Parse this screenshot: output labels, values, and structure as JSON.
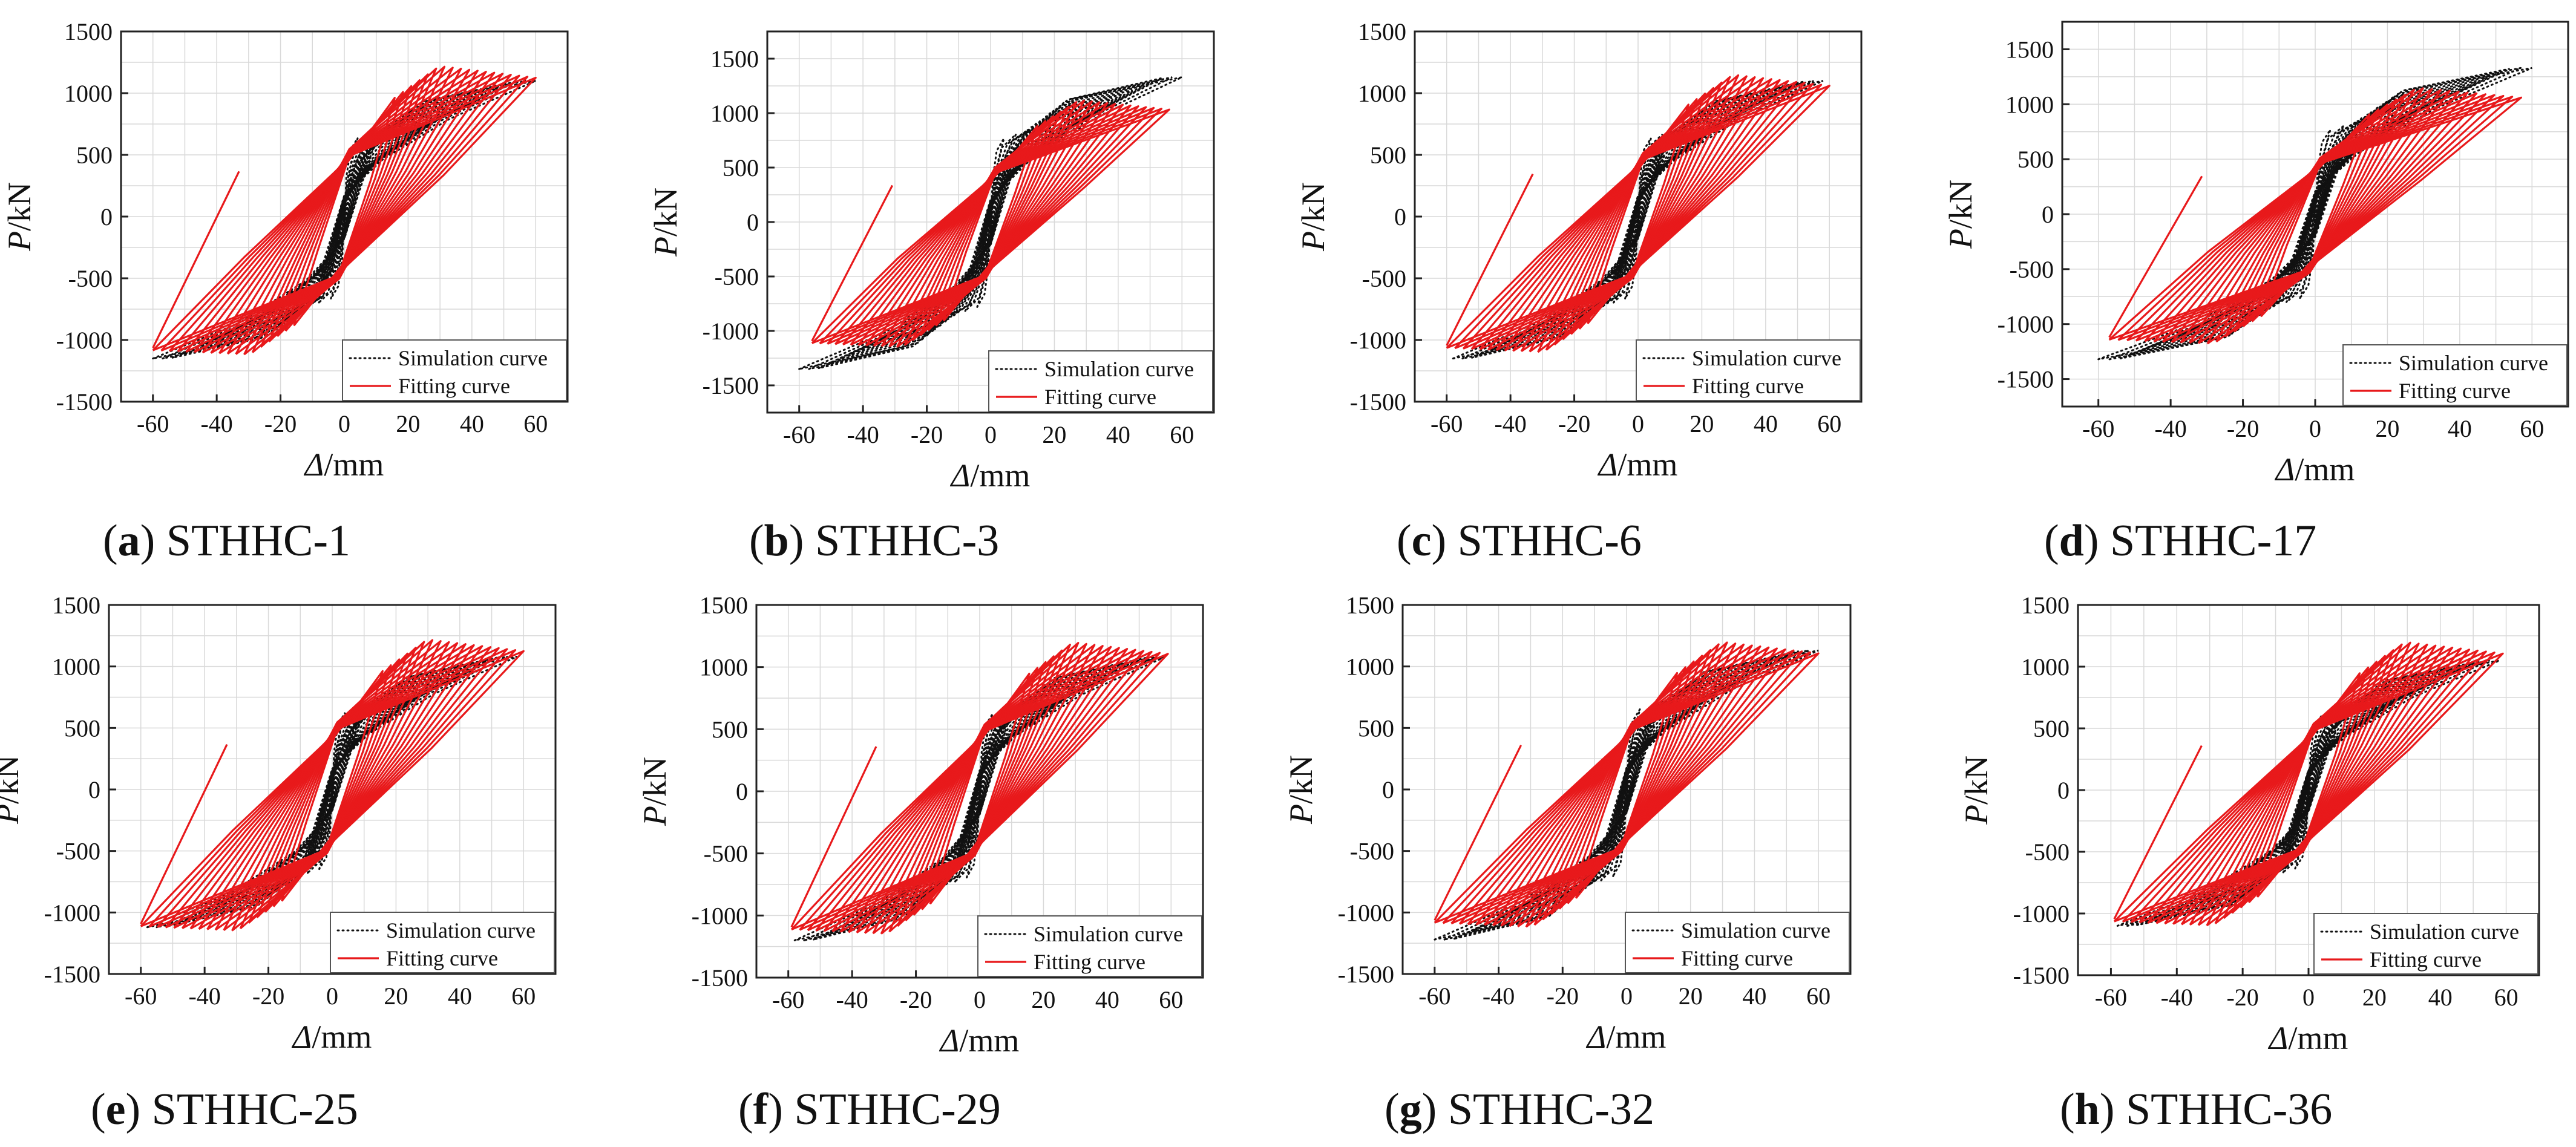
{
  "figure": {
    "legend": {
      "simulation": "Simulation curve",
      "fitting": "Fitting curve"
    },
    "ylabel": {
      "symbol": "P",
      "unit": "/kN"
    },
    "xlabel": {
      "symbol": "Δ",
      "unit": "/mm"
    },
    "colors": {
      "simulation": "#111111",
      "fitting": "#e8191b",
      "grid": "#d9d9d9",
      "frame": "#222222"
    }
  },
  "chart_data": [
    {
      "type": "line",
      "panel": "(a)",
      "letter": "a",
      "specimen": "STHHC-1",
      "caption": "STHHC-1",
      "title": "",
      "xlabel": "Δ/mm",
      "ylabel": "P/kN",
      "xlim": [
        -70,
        70
      ],
      "ylim": [
        -1500,
        1500
      ],
      "xticks": [
        -60,
        -40,
        -20,
        0,
        20,
        40,
        60
      ],
      "yticks": [
        -1500,
        -1000,
        -500,
        0,
        500,
        1000,
        1500
      ],
      "series": [
        {
          "name": "Simulation curve",
          "style": "dotted",
          "peak_positive": 1100,
          "peak_negative": -1150,
          "max_disp": 60
        },
        {
          "name": "Fitting curve",
          "style": "solid",
          "peak_positive": 1220,
          "peak_negative": -1120,
          "max_disp": 60
        }
      ]
    },
    {
      "type": "line",
      "panel": "(b)",
      "letter": "b",
      "specimen": "STHHC-3",
      "caption": "STHHC-3",
      "title": "",
      "xlabel": "Δ/mm",
      "ylabel": "P/kN",
      "xlim": [
        -70,
        70
      ],
      "ylim": [
        -1750,
        1750
      ],
      "xticks": [
        -60,
        -40,
        -20,
        0,
        20,
        40,
        60
      ],
      "yticks": [
        -1500,
        -1000,
        -500,
        0,
        500,
        1000,
        1500
      ],
      "series": [
        {
          "name": "Simulation curve",
          "style": "dotted",
          "peak_positive": 1330,
          "peak_negative": -1350,
          "max_disp": 60
        },
        {
          "name": "Fitting curve",
          "style": "solid",
          "peak_positive": 1120,
          "peak_negative": -1150,
          "max_disp": 56
        }
      ]
    },
    {
      "type": "line",
      "panel": "(c)",
      "letter": "c",
      "specimen": "STHHC-6",
      "caption": "STHHC-6",
      "title": "",
      "xlabel": "Δ/mm",
      "ylabel": "P/kN",
      "xlim": [
        -70,
        70
      ],
      "ylim": [
        -1500,
        1500
      ],
      "xticks": [
        -60,
        -40,
        -20,
        0,
        20,
        40,
        60
      ],
      "yticks": [
        -1500,
        -1000,
        -500,
        0,
        500,
        1000,
        1500
      ],
      "series": [
        {
          "name": "Simulation curve",
          "style": "dotted",
          "peak_positive": 1100,
          "peak_negative": -1150,
          "max_disp": 58
        },
        {
          "name": "Fitting curve",
          "style": "solid",
          "peak_positive": 1150,
          "peak_negative": -1100,
          "max_disp": 60
        }
      ]
    },
    {
      "type": "line",
      "panel": "(d)",
      "letter": "d",
      "specimen": "STHHC-17",
      "caption": "STHHC-17",
      "title": "",
      "xlabel": "Δ/mm",
      "ylabel": "P/kN",
      "xlim": [
        -70,
        70
      ],
      "ylim": [
        -1750,
        1750
      ],
      "xticks": [
        -60,
        -40,
        -20,
        0,
        20,
        40,
        60
      ],
      "yticks": [
        -1500,
        -1000,
        -500,
        0,
        500,
        1000,
        1500
      ],
      "series": [
        {
          "name": "Simulation curve",
          "style": "dotted",
          "peak_positive": 1330,
          "peak_negative": -1320,
          "max_disp": 60
        },
        {
          "name": "Fitting curve",
          "style": "solid",
          "peak_positive": 1150,
          "peak_negative": -1180,
          "max_disp": 57
        }
      ]
    },
    {
      "type": "line",
      "panel": "(e)",
      "letter": "e",
      "specimen": "STHHC-25",
      "caption": "STHHC-25",
      "title": "",
      "xlabel": "Δ/mm",
      "ylabel": "P/kN",
      "xlim": [
        -70,
        70
      ],
      "ylim": [
        -1500,
        1500
      ],
      "xticks": [
        -60,
        -40,
        -20,
        0,
        20,
        40,
        60
      ],
      "yticks": [
        -1500,
        -1000,
        -500,
        0,
        500,
        1000,
        1500
      ],
      "series": [
        {
          "name": "Simulation curve",
          "style": "dotted",
          "peak_positive": 1080,
          "peak_negative": -1120,
          "max_disp": 58
        },
        {
          "name": "Fitting curve",
          "style": "solid",
          "peak_positive": 1220,
          "peak_negative": -1150,
          "max_disp": 60
        }
      ]
    },
    {
      "type": "line",
      "panel": "(f)",
      "letter": "f",
      "specimen": "STHHC-29",
      "caption": "STHHC-29",
      "title": "",
      "xlabel": "Δ/mm",
      "ylabel": "P/kN",
      "xlim": [
        -70,
        70
      ],
      "ylim": [
        -1500,
        1500
      ],
      "xticks": [
        -60,
        -40,
        -20,
        0,
        20,
        40,
        60
      ],
      "yticks": [
        -1500,
        -1000,
        -500,
        0,
        500,
        1000,
        1500
      ],
      "series": [
        {
          "name": "Simulation curve",
          "style": "dotted",
          "peak_positive": 1080,
          "peak_negative": -1200,
          "max_disp": 58
        },
        {
          "name": "Fitting curve",
          "style": "solid",
          "peak_positive": 1200,
          "peak_negative": -1150,
          "max_disp": 59
        }
      ]
    },
    {
      "type": "line",
      "panel": "(g)",
      "letter": "g",
      "specimen": "STHHC-32",
      "caption": "STHHC-32",
      "title": "",
      "xlabel": "Δ/mm",
      "ylabel": "P/kN",
      "xlim": [
        -70,
        70
      ],
      "ylim": [
        -1500,
        1500
      ],
      "xticks": [
        -60,
        -40,
        -20,
        0,
        20,
        40,
        60
      ],
      "yticks": [
        -1500,
        -1000,
        -500,
        0,
        500,
        1000,
        1500
      ],
      "series": [
        {
          "name": "Simulation curve",
          "style": "dotted",
          "peak_positive": 1130,
          "peak_negative": -1220,
          "max_disp": 60
        },
        {
          "name": "Fitting curve",
          "style": "solid",
          "peak_positive": 1200,
          "peak_negative": -1120,
          "max_disp": 60
        }
      ]
    },
    {
      "type": "line",
      "panel": "(h)",
      "letter": "h",
      "specimen": "STHHC-36",
      "caption": "STHHC-36",
      "title": "",
      "xlabel": "Δ/mm",
      "ylabel": "P/kN",
      "xlim": [
        -70,
        70
      ],
      "ylim": [
        -1500,
        1500
      ],
      "xticks": [
        -60,
        -40,
        -20,
        0,
        20,
        40,
        60
      ],
      "yticks": [
        -1500,
        -1000,
        -500,
        0,
        500,
        1000,
        1500
      ],
      "series": [
        {
          "name": "Simulation curve",
          "style": "dotted",
          "peak_positive": 1050,
          "peak_negative": -1100,
          "max_disp": 58
        },
        {
          "name": "Fitting curve",
          "style": "solid",
          "peak_positive": 1200,
          "peak_negative": -1100,
          "max_disp": 59
        }
      ]
    }
  ]
}
